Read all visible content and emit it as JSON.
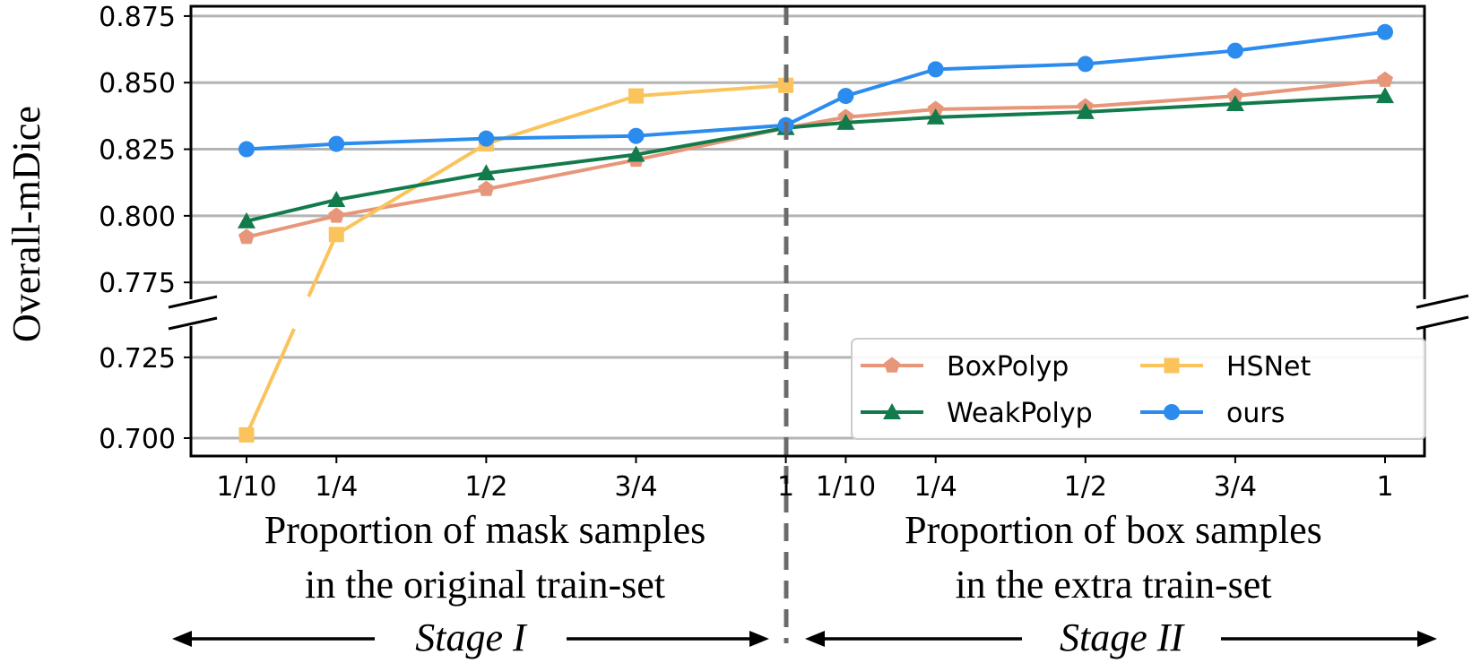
{
  "chart_data": {
    "type": "line",
    "ylabel": "Overall-mDice",
    "y_ticks": [
      "0.700",
      "0.725",
      "0.775",
      "0.800",
      "0.825",
      "0.850",
      "0.875"
    ],
    "y_broken_axis": {
      "lower_range": [
        0.695,
        0.738
      ],
      "upper_range": [
        0.768,
        0.878
      ]
    },
    "grid": true,
    "categories": [
      "1/10",
      "1/4",
      "1/2",
      "3/4",
      "1",
      "1/10",
      "1/4",
      "1/2",
      "3/4",
      "1"
    ],
    "x_positions": [
      0.1,
      0.25,
      0.5,
      0.75,
      1.0,
      1.1,
      1.25,
      1.5,
      1.75,
      2.0
    ],
    "xlabel_left": [
      "Proportion of mask samples",
      "in the original train-set"
    ],
    "xlabel_right": [
      "Proportion of box samples",
      "in the extra train-set"
    ],
    "stage_left": "Stage I",
    "stage_right": "Stage II",
    "series": [
      {
        "name": "BoxPolyp",
        "color": "#E8967A",
        "marker": "pentagon",
        "values": [
          0.792,
          0.8,
          0.81,
          0.821,
          0.833,
          0.837,
          0.84,
          0.841,
          0.845,
          0.851
        ]
      },
      {
        "name": "HSNet",
        "color": "#FBC35B",
        "marker": "square",
        "values": [
          0.701,
          0.793,
          0.827,
          0.845,
          0.849,
          null,
          null,
          null,
          null,
          null
        ]
      },
      {
        "name": "WeakPolyp",
        "color": "#127B4B",
        "marker": "triangle",
        "values": [
          0.798,
          0.806,
          0.816,
          0.823,
          0.833,
          0.835,
          0.837,
          0.839,
          0.842,
          0.845
        ]
      },
      {
        "name": "ours",
        "color": "#2B8CEE",
        "marker": "circle",
        "values": [
          0.825,
          0.827,
          0.829,
          0.83,
          0.834,
          0.845,
          0.855,
          0.857,
          0.862,
          0.869
        ]
      }
    ],
    "legend_position": "lower-right"
  }
}
